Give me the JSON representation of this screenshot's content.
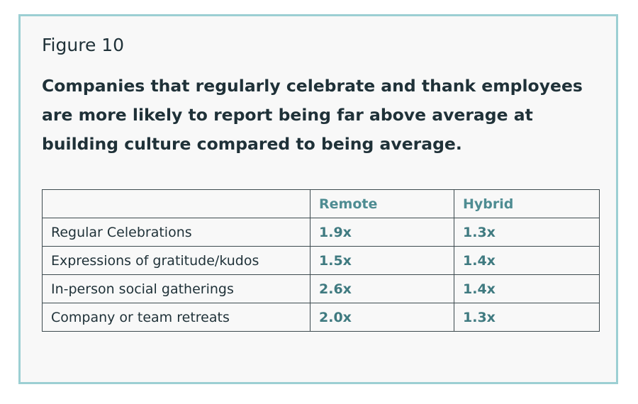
{
  "figure_label": "Figure 10",
  "chart_data": {
    "type": "table",
    "title": "Companies that regularly celebrate and thank employees are more likely to report being far above average at building culture compared to being average.",
    "columns": [
      "",
      "Remote",
      "Hybrid"
    ],
    "rows": [
      {
        "label": "Regular Celebrations",
        "values": [
          "1.9x",
          "1.3x"
        ]
      },
      {
        "label": "Expressions of gratitude/kudos",
        "values": [
          "1.5x",
          "1.4x"
        ]
      },
      {
        "label": "In-person social gatherings",
        "values": [
          "2.6x",
          "1.4x"
        ]
      },
      {
        "label": "Company or team retreats",
        "values": [
          "2.0x",
          "1.3x"
        ]
      }
    ]
  },
  "colors": {
    "card_border": "#9ccfd3",
    "card_background": "#f8f8f8",
    "text_dark": "#1f3138",
    "accent_teal": "#4e8c92"
  }
}
